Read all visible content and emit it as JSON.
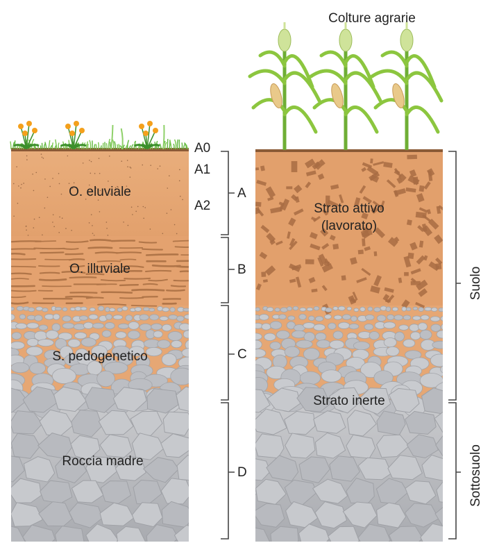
{
  "left_column": {
    "horizon_labels": {
      "a0": "A0",
      "a1": "A1",
      "a2": "A2"
    },
    "layers": {
      "eluviale": "O. eluviale",
      "illuviale": "O. illuviale",
      "pedogenetico": "S. pedogenetico",
      "roccia": "Roccia madre"
    }
  },
  "horizon_letters": {
    "a": "A",
    "b": "B",
    "c": "C",
    "d": "D"
  },
  "right_column": {
    "crops_label": "Colture agrarie",
    "active_layer_line1": "Strato attivo",
    "active_layer_line2": "(lavorato)",
    "inert_layer": "Strato inerte"
  },
  "side_labels": {
    "suolo": "Suolo",
    "sottosuolo": "Sottosuolo"
  },
  "colors": {
    "soil": "#e6a774",
    "soil_dark": "#a86c43",
    "stone": "#b9bbc0",
    "stone_light": "#d9dadd",
    "grass": "#5fb63c",
    "flower": "#f4a01c",
    "corn": "#8cc63f"
  }
}
